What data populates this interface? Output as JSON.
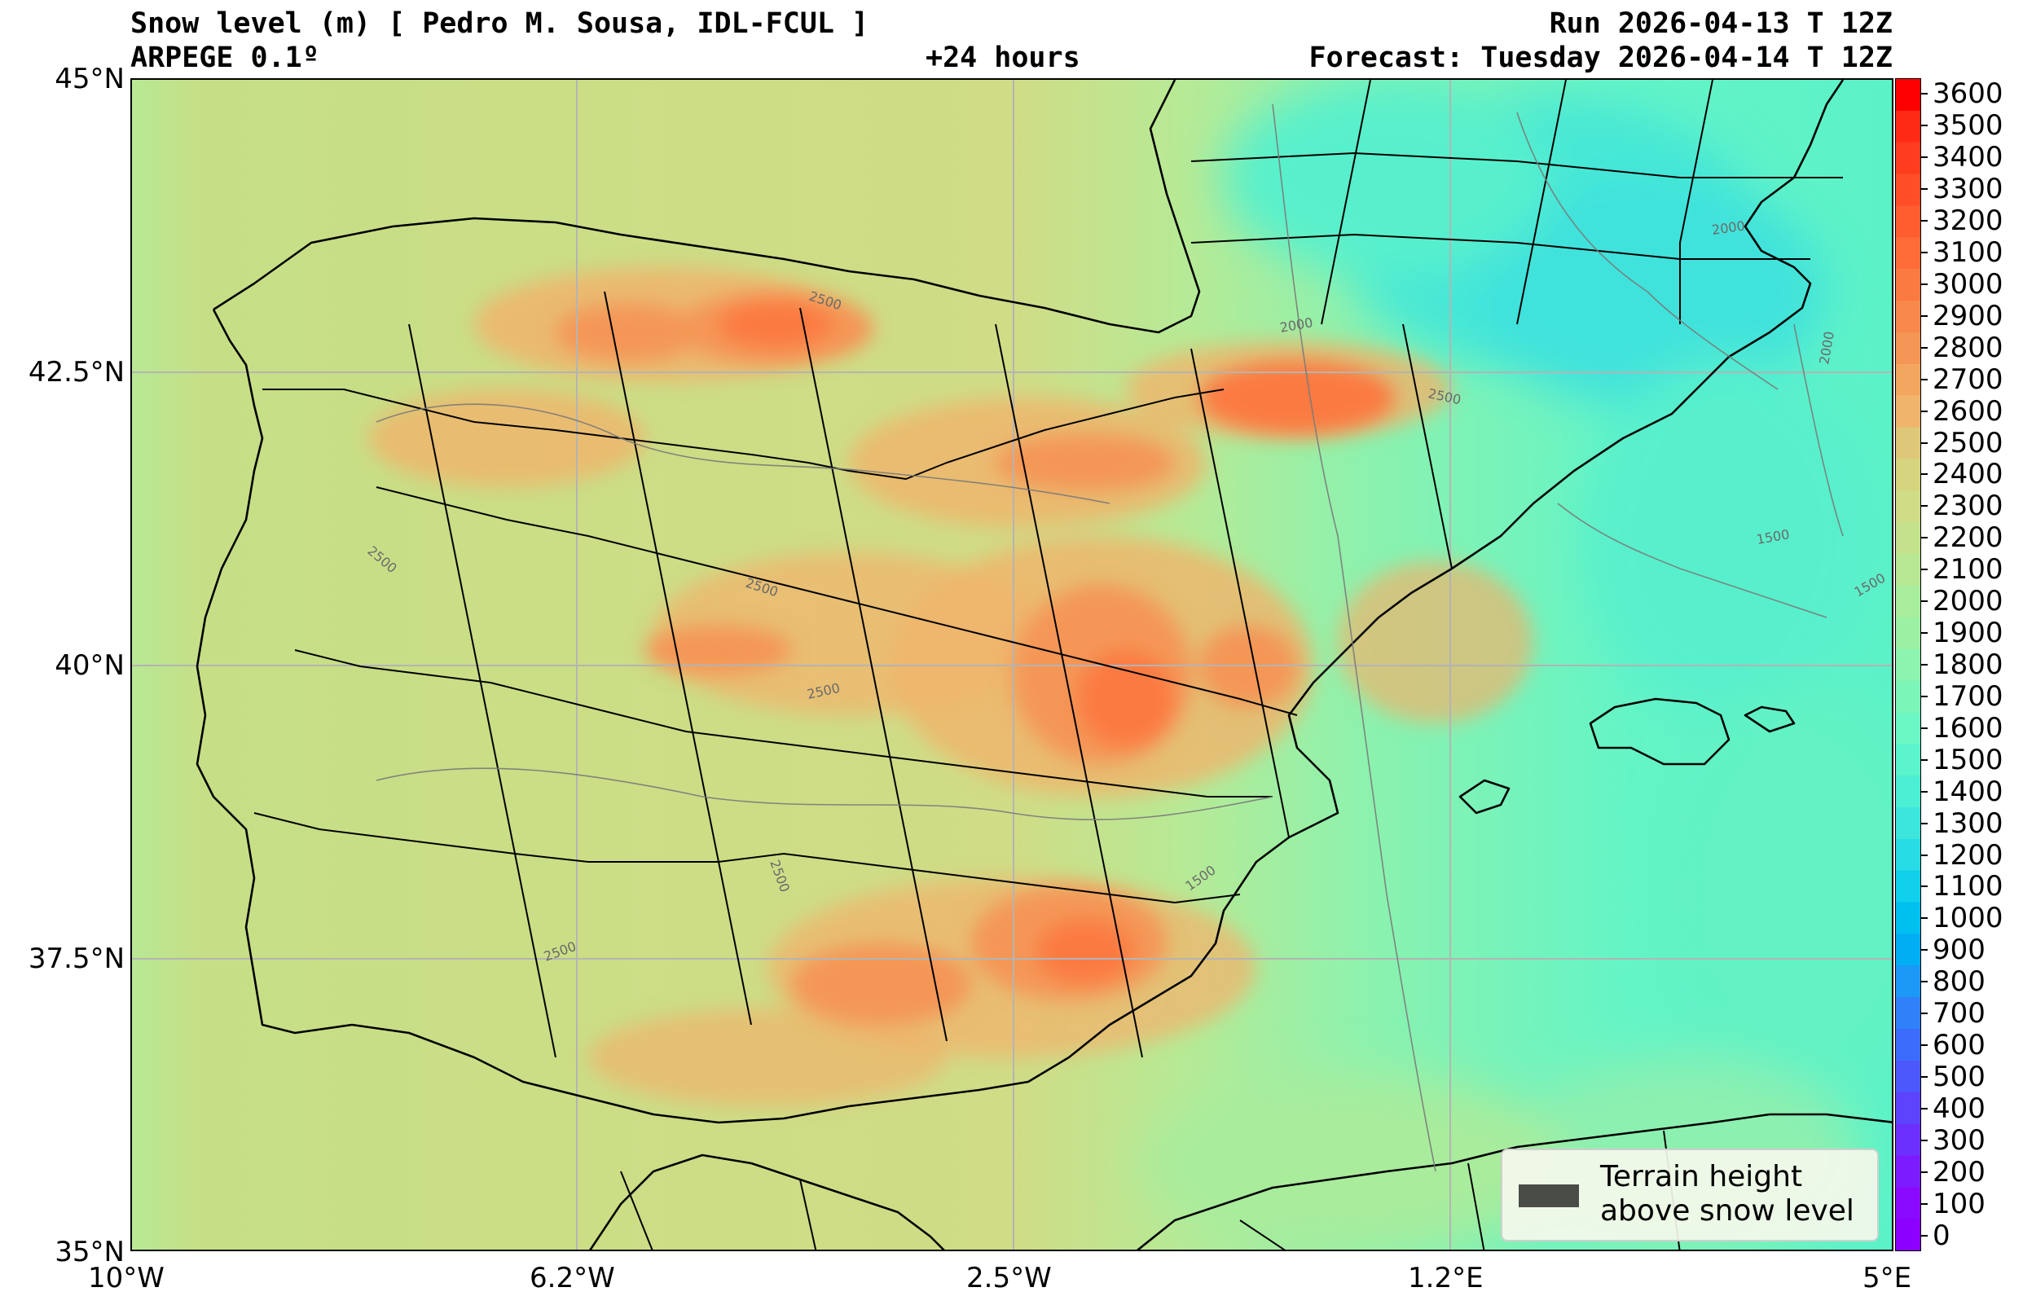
{
  "header": {
    "title": "Snow level (m) [ Pedro M. Sousa, IDL-FCUL ]",
    "model": "ARPEGE 0.1º",
    "lead": "+24 hours",
    "run": "Run 2026-04-13 T 12Z",
    "forecast": "Forecast: Tuesday 2026-04-14 T 12Z"
  },
  "map": {
    "x_ticks": [
      "10°W",
      "6.2°W",
      "2.5°W",
      "1.2°E",
      "5°E"
    ],
    "y_ticks": [
      "45°N",
      "42.5°N",
      "40°N",
      "37.5°N",
      "35°N"
    ],
    "contour_labels": [
      "2500",
      "2500",
      "2500",
      "2500",
      "2500",
      "2500",
      "2500",
      "2000",
      "2000",
      "2000",
      "1500",
      "1500",
      "1500"
    ],
    "legend": {
      "line1": "Terrain height",
      "line2": "above snow level",
      "swatch_color": "#4a4d47"
    }
  },
  "colorbar": {
    "labels": [
      "3600",
      "3500",
      "3400",
      "3300",
      "3200",
      "3100",
      "3000",
      "2900",
      "2800",
      "2700",
      "2600",
      "2500",
      "2400",
      "2300",
      "2200",
      "2100",
      "2000",
      "1900",
      "1800",
      "1700",
      "1600",
      "1500",
      "1400",
      "1300",
      "1200",
      "1100",
      "1000",
      "900",
      "800",
      "700",
      "600",
      "500",
      "400",
      "300",
      "200",
      "100",
      "0"
    ],
    "colors_top_to_bottom": [
      "#ff0000",
      "#ff2a16",
      "#ff3c1e",
      "#ff4e28",
      "#ff5c30",
      "#ff6c38",
      "#fb7a42",
      "#f8884c",
      "#f49656",
      "#f3a660",
      "#f0b46c",
      "#dcc878",
      "#d6d47e",
      "#d0dc86",
      "#c4e28c",
      "#b8e894",
      "#a8ee9c",
      "#9cf0a4",
      "#8cf4ae",
      "#7cf6b8",
      "#6cf8c4",
      "#5cf4cc",
      "#4ceed4",
      "#3ce6dc",
      "#28dce6",
      "#10d0ec",
      "#00c0f0",
      "#00aef4",
      "#1c98f6",
      "#3080fa",
      "#3c6cfc",
      "#4c58fc",
      "#5c44fc",
      "#6c30fc",
      "#7c1cfe",
      "#8a0aff",
      "#8c00ff"
    ]
  }
}
